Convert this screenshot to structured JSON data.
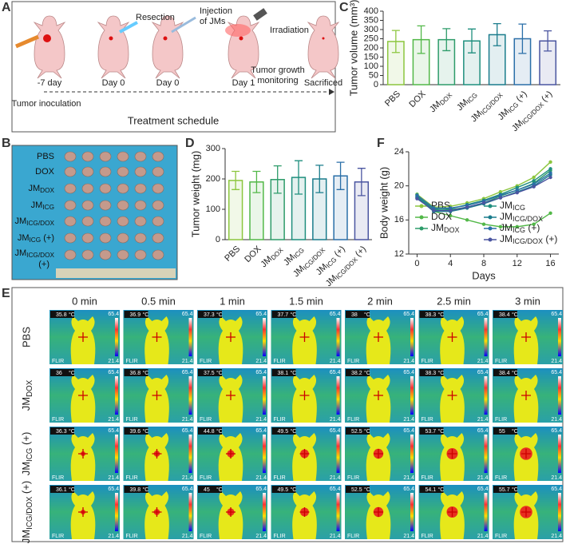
{
  "panel_labels": [
    "A",
    "B",
    "C",
    "D",
    "E",
    "F"
  ],
  "schedule": {
    "steps": [
      "-7 day",
      "Day 0",
      "Day 0",
      "Day 1",
      "Sacrificed"
    ],
    "resection": "Resection",
    "injection": [
      "Injection",
      "of JMs"
    ],
    "irradiation": "Irradiation",
    "monitoring": [
      "Tumor growth",
      "monitoring"
    ],
    "inoculation": "Tumor  inoculation",
    "caption": "Treatment schedule"
  },
  "photo": {
    "rows": [
      "PBS",
      "DOX",
      "JMDOX",
      "JMICG",
      "JMICG/DOX",
      "JMICG (+)",
      "JMICG/DOX",
      "(+)"
    ]
  },
  "chart_data": [
    {
      "type": "bar",
      "y_label": "Tumor volume (mm³)",
      "categories": [
        "PBS",
        "DOX",
        "JMDOX",
        "JMICG",
        "JMICG/DOX",
        "JMICG (+)",
        "JMICG/DOX (+)"
      ],
      "values": [
        235,
        245,
        245,
        238,
        272,
        250,
        238
      ],
      "errors": [
        60,
        75,
        60,
        65,
        60,
        80,
        55
      ],
      "colors": [
        "#8cc63e",
        "#52b848",
        "#2e9c6a",
        "#1f8f7e",
        "#1a7c8c",
        "#2a6fa8",
        "#4a55a0"
      ],
      "ylim": [
        0,
        400
      ],
      "yticks": [
        0,
        50,
        100,
        150,
        200,
        250,
        300,
        350,
        400
      ]
    },
    {
      "type": "bar",
      "y_label": "Tumor weight (mg)",
      "categories": [
        "PBS",
        "DOX",
        "JMDOX",
        "JMICG",
        "JMICG/DOX",
        "JMICG (+)",
        "JMICG/DOX (+)"
      ],
      "values": [
        195,
        190,
        198,
        205,
        200,
        210,
        190
      ],
      "errors": [
        30,
        35,
        45,
        55,
        45,
        45,
        45
      ],
      "colors": [
        "#8cc63e",
        "#52b848",
        "#2e9c6a",
        "#1f8f7e",
        "#1a7c8c",
        "#2a6fa8",
        "#4a55a0"
      ],
      "ylim": [
        0,
        300
      ],
      "yticks": [
        0,
        100,
        200,
        300
      ]
    },
    {
      "type": "line",
      "x_label": "Days",
      "y_label": "Body weight (g)",
      "x": [
        0,
        2,
        4,
        6,
        8,
        10,
        12,
        14,
        16
      ],
      "series": [
        {
          "name": "PBS",
          "color": "#8cc63e",
          "values": [
            19.0,
            17.5,
            17.6,
            18.0,
            18.5,
            19.3,
            20.0,
            21.0,
            22.8
          ]
        },
        {
          "name": "DOX",
          "color": "#52b848",
          "values": [
            19.0,
            17.0,
            16.5,
            16.0,
            15.5,
            15.2,
            15.2,
            15.5,
            16.8
          ]
        },
        {
          "name": "JMDOX",
          "color": "#2e9c6a",
          "values": [
            18.8,
            17.3,
            17.2,
            17.5,
            18.0,
            18.8,
            19.5,
            20.3,
            21.8
          ]
        },
        {
          "name": "JMICG",
          "color": "#1f8f7e",
          "values": [
            18.7,
            17.2,
            17.3,
            17.8,
            18.3,
            19.0,
            19.8,
            20.6,
            22.0
          ]
        },
        {
          "name": "JMICG/DOX",
          "color": "#1a7c8c",
          "values": [
            18.6,
            17.0,
            17.0,
            17.4,
            17.9,
            18.6,
            19.3,
            20.0,
            21.3
          ]
        },
        {
          "name": "JMICG (+)",
          "color": "#2a6fa8",
          "values": [
            18.9,
            17.4,
            17.4,
            17.7,
            18.2,
            18.9,
            19.5,
            20.2,
            21.5
          ]
        },
        {
          "name": "JMICG/DOX (+)",
          "color": "#4a55a0",
          "values": [
            18.5,
            17.1,
            17.1,
            17.5,
            18.0,
            18.6,
            19.2,
            19.9,
            21.0
          ]
        }
      ],
      "xlim": [
        -1,
        17
      ],
      "xticks": [
        0,
        4,
        8,
        12,
        16
      ],
      "ylim": [
        12,
        24
      ],
      "yticks": [
        12,
        16,
        20,
        24
      ]
    }
  ],
  "thermal": {
    "columns": [
      "0 min",
      "0.5 min",
      "1 min",
      "1.5 min",
      "2 min",
      "2.5 min",
      "3 min"
    ],
    "rows": [
      "PBS",
      "JMDOX",
      "JMICG (+)",
      "JMICG/DOX (+)"
    ],
    "temps": [
      [
        35.8,
        36.9,
        37.3,
        37.7,
        38.0,
        38.3,
        38.4
      ],
      [
        36.0,
        36.8,
        37.5,
        38.1,
        38.2,
        38.3,
        38.4
      ],
      [
        36.3,
        39.6,
        44.8,
        49.5,
        52.5,
        53.7,
        55.0
      ],
      [
        36.1,
        39.8,
        45.0,
        49.5,
        52.5,
        54.1,
        55.7
      ]
    ],
    "unit": "°C",
    "scale_max": "65.4",
    "scale_min": "21.4",
    "brand": "FLIR"
  }
}
